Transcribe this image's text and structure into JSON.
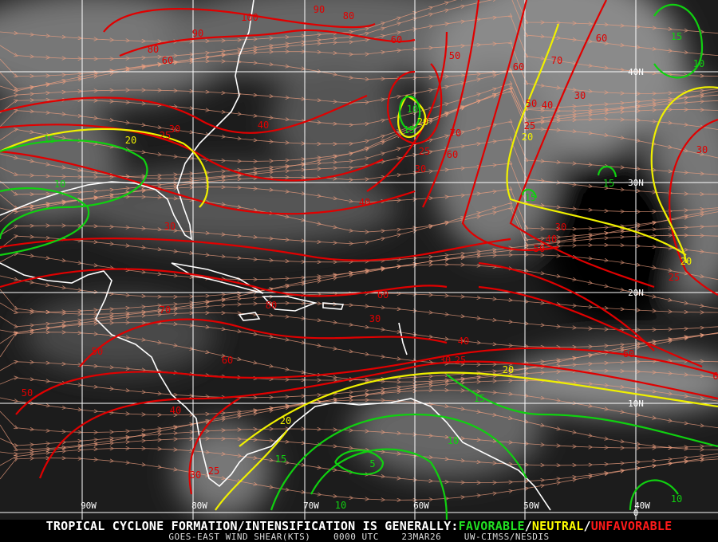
{
  "map": {
    "colors": {
      "unfavorable": "#e00000",
      "neutral": "#f0f000",
      "favorable": "#10d010",
      "streamline": "#f0a080",
      "grid": "#ffffff",
      "coast": "#ffffff"
    },
    "longitude_labels": [
      "90W",
      "80W",
      "70W",
      "60W",
      "50W",
      "40W"
    ],
    "latitude_labels": [
      "40N",
      "30N",
      "20N",
      "10N",
      "0"
    ],
    "contour_labels": [
      {
        "v": "100",
        "c": "red"
      },
      {
        "v": "90",
        "c": "red"
      },
      {
        "v": "80",
        "c": "red"
      },
      {
        "v": "90",
        "c": "red"
      },
      {
        "v": "80",
        "c": "red"
      },
      {
        "v": "60",
        "c": "red"
      },
      {
        "v": "60",
        "c": "red"
      },
      {
        "v": "60",
        "c": "red"
      },
      {
        "v": "50",
        "c": "red"
      },
      {
        "v": "60",
        "c": "red"
      },
      {
        "v": "70",
        "c": "red"
      },
      {
        "v": "30",
        "c": "red"
      },
      {
        "v": "40",
        "c": "red"
      },
      {
        "v": "50",
        "c": "red"
      },
      {
        "v": "40",
        "c": "red"
      },
      {
        "v": "30",
        "c": "red"
      },
      {
        "v": "25",
        "c": "red"
      },
      {
        "v": "25",
        "c": "red"
      },
      {
        "v": "30",
        "c": "red"
      },
      {
        "v": "70",
        "c": "red"
      },
      {
        "v": "25",
        "c": "red"
      },
      {
        "v": "60",
        "c": "red"
      },
      {
        "v": "40",
        "c": "red"
      },
      {
        "v": "30",
        "c": "red"
      },
      {
        "v": "30",
        "c": "red"
      },
      {
        "v": "40",
        "c": "red"
      },
      {
        "v": "50",
        "c": "red"
      },
      {
        "v": "30",
        "c": "red"
      },
      {
        "v": "25",
        "c": "red"
      },
      {
        "v": "80",
        "c": "red"
      },
      {
        "v": "60",
        "c": "red"
      },
      {
        "v": "70",
        "c": "red"
      },
      {
        "v": "30",
        "c": "red"
      },
      {
        "v": "50",
        "c": "red"
      },
      {
        "v": "60",
        "c": "red"
      },
      {
        "v": "40",
        "c": "red"
      },
      {
        "v": "30",
        "c": "red"
      },
      {
        "v": "25",
        "c": "red"
      },
      {
        "v": "60",
        "c": "red"
      },
      {
        "v": "50",
        "c": "red"
      },
      {
        "v": "40",
        "c": "red"
      },
      {
        "v": "30",
        "c": "red"
      },
      {
        "v": "25",
        "c": "red"
      },
      {
        "v": "6",
        "c": "red"
      },
      {
        "v": "20",
        "c": "yellow"
      },
      {
        "v": "20",
        "c": "yellow"
      },
      {
        "v": "20",
        "c": "yellow"
      },
      {
        "v": "20",
        "c": "yellow"
      },
      {
        "v": "20",
        "c": "yellow"
      },
      {
        "v": "20",
        "c": "yellow"
      },
      {
        "v": "15",
        "c": "green"
      },
      {
        "v": "15",
        "c": "green"
      },
      {
        "v": "10",
        "c": "green"
      },
      {
        "v": "10",
        "c": "green"
      },
      {
        "v": "15",
        "c": "green"
      },
      {
        "v": "10",
        "c": "green"
      },
      {
        "v": "15",
        "c": "green"
      },
      {
        "v": "15",
        "c": "green"
      },
      {
        "v": "15",
        "c": "green"
      },
      {
        "v": "10",
        "c": "green"
      },
      {
        "v": "15",
        "c": "green"
      },
      {
        "v": "5",
        "c": "green"
      },
      {
        "v": "10",
        "c": "green"
      },
      {
        "v": "10",
        "c": "green"
      }
    ]
  },
  "footer": {
    "prefix": "TROPICAL CYCLONE FORMATION/INTENSIFICATION IS GENERALLY:",
    "favorable": "FAVORABLE",
    "sep1": "/",
    "neutral": "NEUTRAL",
    "sep2": "/",
    "unfavorable": "UNFAVORABLE",
    "product": "GOES-EAST WIND SHEAR(KTS)",
    "time": "0000 UTC",
    "date": "23MAR26",
    "source": "UW-CIMSS/NESDIS"
  }
}
